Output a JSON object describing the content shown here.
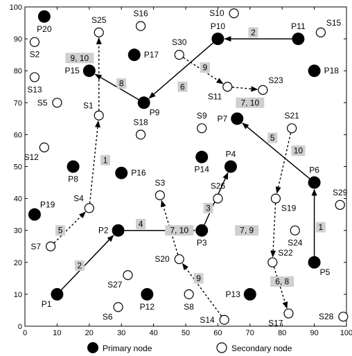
{
  "chart_data": {
    "type": "scatter",
    "xlim": [
      0,
      100
    ],
    "ylim": [
      0,
      100
    ],
    "x_ticks": [
      0,
      10,
      20,
      30,
      40,
      50,
      60,
      70,
      80,
      90,
      100
    ],
    "y_ticks": [
      0,
      10,
      20,
      30,
      40,
      50,
      60,
      70,
      80,
      90,
      100
    ],
    "grid": false,
    "legend": {
      "placement": "bottom",
      "primary_label": "Primary node",
      "secondary_label": "Secondary node"
    },
    "primary_nodes": [
      {
        "label": "P1",
        "x": 10,
        "y": 10,
        "label_pos": "bl"
      },
      {
        "label": "P2",
        "x": 29,
        "y": 30,
        "label_pos": "l"
      },
      {
        "label": "P3",
        "x": 55,
        "y": 30,
        "label_pos": "b"
      },
      {
        "label": "P4",
        "x": 64,
        "y": 50,
        "label_pos": "t"
      },
      {
        "label": "P5",
        "x": 90,
        "y": 20,
        "label_pos": "br"
      },
      {
        "label": "P6",
        "x": 90,
        "y": 45,
        "label_pos": "t"
      },
      {
        "label": "P7",
        "x": 66,
        "y": 65,
        "label_pos": "l"
      },
      {
        "label": "P8",
        "x": 15,
        "y": 50,
        "label_pos": "b"
      },
      {
        "label": "P9",
        "x": 37,
        "y": 70,
        "label_pos": "br"
      },
      {
        "label": "P10",
        "x": 60,
        "y": 90,
        "label_pos": "t"
      },
      {
        "label": "P11",
        "x": 85,
        "y": 90,
        "label_pos": "t"
      },
      {
        "label": "P12",
        "x": 38,
        "y": 10,
        "label_pos": "b"
      },
      {
        "label": "P13",
        "x": 70,
        "y": 10,
        "label_pos": "l"
      },
      {
        "label": "P14",
        "x": 55,
        "y": 53,
        "label_pos": "b"
      },
      {
        "label": "P15",
        "x": 20,
        "y": 80,
        "label_pos": "l"
      },
      {
        "label": "P16",
        "x": 30,
        "y": 48,
        "label_pos": "r"
      },
      {
        "label": "P17",
        "x": 34,
        "y": 85,
        "label_pos": "r"
      },
      {
        "label": "P18",
        "x": 90,
        "y": 80,
        "label_pos": "r"
      },
      {
        "label": "P19",
        "x": 3,
        "y": 35,
        "label_pos": "tr"
      },
      {
        "label": "P20",
        "x": 6,
        "y": 97,
        "label_pos": "b"
      }
    ],
    "secondary_nodes": [
      {
        "label": "S1",
        "x": 23,
        "y": 66,
        "label_pos": "tl"
      },
      {
        "label": "S2",
        "x": 3,
        "y": 89,
        "label_pos": "b"
      },
      {
        "label": "S3",
        "x": 42,
        "y": 41,
        "label_pos": "t"
      },
      {
        "label": "S4",
        "x": 20,
        "y": 37,
        "label_pos": "tl"
      },
      {
        "label": "S5",
        "x": 10,
        "y": 70,
        "label_pos": "l"
      },
      {
        "label": "S6",
        "x": 29,
        "y": 6,
        "label_pos": "bl"
      },
      {
        "label": "S7",
        "x": 8,
        "y": 25,
        "label_pos": "l"
      },
      {
        "label": "S8",
        "x": 51,
        "y": 10,
        "label_pos": "b"
      },
      {
        "label": "S9",
        "x": 55,
        "y": 62,
        "label_pos": "t"
      },
      {
        "label": "S10",
        "x": 65,
        "y": 98,
        "label_pos": "l"
      },
      {
        "label": "S11",
        "x": 63,
        "y": 75,
        "label_pos": "bl"
      },
      {
        "label": "S12",
        "x": 6,
        "y": 56,
        "label_pos": "bl"
      },
      {
        "label": "S13",
        "x": 3,
        "y": 78,
        "label_pos": "b"
      },
      {
        "label": "S14",
        "x": 62,
        "y": 2,
        "label_pos": "l"
      },
      {
        "label": "S15",
        "x": 92,
        "y": 92,
        "label_pos": "tr"
      },
      {
        "label": "S16",
        "x": 36,
        "y": 94,
        "label_pos": "t"
      },
      {
        "label": "S17",
        "x": 82,
        "y": 4,
        "label_pos": "bl"
      },
      {
        "label": "S18",
        "x": 36,
        "y": 60,
        "label_pos": "t"
      },
      {
        "label": "S19",
        "x": 78,
        "y": 40,
        "label_pos": "br"
      },
      {
        "label": "S20",
        "x": 48,
        "y": 21,
        "label_pos": "l"
      },
      {
        "label": "S21",
        "x": 83,
        "y": 62,
        "label_pos": "t"
      },
      {
        "label": "S22",
        "x": 77,
        "y": 20,
        "label_pos": "tr"
      },
      {
        "label": "S23",
        "x": 74,
        "y": 74,
        "label_pos": "tr"
      },
      {
        "label": "S24",
        "x": 84,
        "y": 30,
        "label_pos": "b"
      },
      {
        "label": "S25",
        "x": 23,
        "y": 92,
        "label_pos": "t"
      },
      {
        "label": "S26",
        "x": 60,
        "y": 40,
        "label_pos": "t"
      },
      {
        "label": "S27",
        "x": 32,
        "y": 16,
        "label_pos": "bl"
      },
      {
        "label": "S28",
        "x": 99,
        "y": 3,
        "label_pos": "l"
      },
      {
        "label": "S29",
        "x": 98,
        "y": 38,
        "label_pos": "t"
      },
      {
        "label": "S30",
        "x": 48,
        "y": 85,
        "label_pos": "t"
      }
    ],
    "edges": [
      {
        "from": [
          10,
          10
        ],
        "to": [
          29,
          30
        ],
        "style": "solid",
        "label": "2",
        "label_at": [
          17,
          19
        ]
      },
      {
        "from": [
          29,
          30
        ],
        "to": [
          55,
          30
        ],
        "style": "solid",
        "label": "4",
        "label_at": [
          36,
          32
        ]
      },
      {
        "from": [
          55,
          30
        ],
        "to": [
          64,
          50
        ],
        "style": "solid",
        "label": "3",
        "label_at": [
          57,
          37
        ]
      },
      {
        "from": [
          90,
          20
        ],
        "to": [
          90,
          45
        ],
        "style": "solid",
        "label": "1",
        "label_at": [
          92,
          31
        ]
      },
      {
        "from": [
          90,
          45
        ],
        "to": [
          66,
          65
        ],
        "style": "solid",
        "label": "5",
        "label_at": [
          77,
          59
        ]
      },
      {
        "from": [
          85,
          90
        ],
        "to": [
          60,
          90
        ],
        "style": "solid",
        "label": "2",
        "label_at": [
          71,
          92
        ]
      },
      {
        "from": [
          60,
          90
        ],
        "to": [
          37,
          70
        ],
        "style": "solid",
        "label": "6",
        "label_at": [
          49,
          75
        ]
      },
      {
        "from": [
          37,
          70
        ],
        "to": [
          20,
          80
        ],
        "style": "solid",
        "label": "8",
        "label_at": [
          30,
          76
        ]
      },
      {
        "from": [
          8,
          25
        ],
        "to": [
          20,
          37
        ],
        "style": "dashed",
        "label": "5",
        "label_at": [
          11,
          30
        ]
      },
      {
        "from": [
          20,
          37
        ],
        "to": [
          23,
          66
        ],
        "style": "dashed",
        "label": "1",
        "label_at": [
          25,
          52
        ]
      },
      {
        "from": [
          23,
          66
        ],
        "to": [
          23,
          92
        ],
        "style": "dashed",
        "label": "9, 10",
        "label_at": [
          17,
          84
        ]
      },
      {
        "from": [
          48,
          85
        ],
        "to": [
          63,
          75
        ],
        "style": "dashed",
        "label": "9",
        "label_at": [
          56,
          81
        ]
      },
      {
        "from": [
          63,
          75
        ],
        "to": [
          74,
          74
        ],
        "style": "dashed",
        "label": "7, 10",
        "label_at": [
          70,
          70
        ]
      },
      {
        "from": [
          83,
          62
        ],
        "to": [
          78,
          40
        ],
        "style": "dashed",
        "label": "10",
        "label_at": [
          85,
          55
        ]
      },
      {
        "from": [
          78,
          40
        ],
        "to": [
          77,
          20
        ],
        "style": "dashed",
        "label": "7, 9",
        "label_at": [
          69,
          30
        ]
      },
      {
        "from": [
          77,
          20
        ],
        "to": [
          82,
          4
        ],
        "style": "dashed",
        "label": "6, 8",
        "label_at": [
          80,
          14
        ]
      },
      {
        "from": [
          62,
          2
        ],
        "to": [
          48,
          21
        ],
        "style": "dashed",
        "label": "9",
        "label_at": [
          54,
          15
        ]
      },
      {
        "from": [
          48,
          21
        ],
        "to": [
          42,
          41
        ],
        "style": "dashed",
        "label": "7, 10",
        "label_at": [
          48,
          30
        ]
      }
    ]
  }
}
